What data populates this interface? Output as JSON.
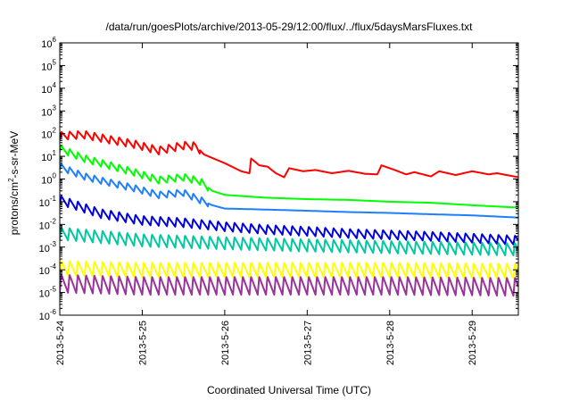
{
  "chart_data": {
    "type": "line",
    "title": "/data/run/goesPlots/archive/2013-05-29/12:00/flux/../flux/5daysMarsFluxes.txt",
    "xlabel": "Coordinated Universal Time (UTC)",
    "ylabel_main": "protons/cm",
    "ylabel_sup": "2",
    "ylabel_tail": "-s-sr-MeV",
    "yscale": "log",
    "ylim_exp": [
      -6,
      6
    ],
    "y_tick_exponents": [
      -6,
      -5,
      -4,
      -3,
      -2,
      -1,
      0,
      1,
      2,
      3,
      4,
      5,
      6
    ],
    "y_tick_base": "10",
    "x_start_day": 24.0,
    "x_end_day": 29.56,
    "x_ticks": [
      {
        "day": 24,
        "label": "2013-5-24"
      },
      {
        "day": 25,
        "label": "2013-5-25"
      },
      {
        "day": 26,
        "label": "2013-5-26"
      },
      {
        "day": 27,
        "label": "2013-5-27"
      },
      {
        "day": 28,
        "label": "2013-5-28"
      },
      {
        "day": 29,
        "label": "2013-5-29"
      }
    ],
    "grid": false,
    "legend": "none",
    "series": [
      {
        "color": "#ff0000",
        "sawtooth_period_days": 0.1,
        "sawtooth_amp_decades": 0.35,
        "sawtooth_until_day": 25.7,
        "points": [
          [
            24.0,
            80
          ],
          [
            24.3,
            90
          ],
          [
            24.6,
            55
          ],
          [
            24.9,
            35
          ],
          [
            25.2,
            18
          ],
          [
            25.5,
            30
          ],
          [
            25.65,
            28
          ],
          [
            25.75,
            12
          ],
          [
            26.0,
            5
          ],
          [
            26.2,
            2.2
          ],
          [
            26.3,
            1.8
          ],
          [
            26.32,
            8
          ],
          [
            26.42,
            4
          ],
          [
            26.52,
            3.5
          ],
          [
            26.62,
            1.8
          ],
          [
            26.72,
            1.2
          ],
          [
            26.78,
            3
          ],
          [
            26.95,
            2.2
          ],
          [
            27.1,
            2.5
          ],
          [
            27.3,
            1.8
          ],
          [
            27.5,
            2.3
          ],
          [
            27.7,
            1.7
          ],
          [
            27.85,
            1.6
          ],
          [
            27.9,
            4
          ],
          [
            28.05,
            2.6
          ],
          [
            28.2,
            1.6
          ],
          [
            28.3,
            2
          ],
          [
            28.5,
            1.3
          ],
          [
            28.6,
            2.2
          ],
          [
            28.8,
            1.5
          ],
          [
            29.0,
            2.2
          ],
          [
            29.2,
            1.6
          ],
          [
            29.3,
            1.8
          ],
          [
            29.56,
            1.2
          ]
        ]
      },
      {
        "color": "#00ff00",
        "sawtooth_period_days": 0.1,
        "sawtooth_amp_decades": 0.32,
        "sawtooth_until_day": 25.8,
        "points": [
          [
            24.0,
            22
          ],
          [
            24.3,
            8
          ],
          [
            24.6,
            4
          ],
          [
            24.9,
            2
          ],
          [
            25.2,
            0.9
          ],
          [
            25.5,
            1.2
          ],
          [
            25.7,
            0.8
          ],
          [
            25.85,
            0.3
          ],
          [
            26.0,
            0.2
          ],
          [
            26.5,
            0.15
          ],
          [
            27.0,
            0.13
          ],
          [
            27.5,
            0.12
          ],
          [
            28.0,
            0.1
          ],
          [
            28.5,
            0.09
          ],
          [
            29.0,
            0.07
          ],
          [
            29.56,
            0.055
          ]
        ]
      },
      {
        "color": "#1e7fff",
        "sawtooth_period_days": 0.1,
        "sawtooth_amp_decades": 0.3,
        "sawtooth_until_day": 25.8,
        "points": [
          [
            24.0,
            3.5
          ],
          [
            24.3,
            1.3
          ],
          [
            24.6,
            0.7
          ],
          [
            24.9,
            0.4
          ],
          [
            25.2,
            0.2
          ],
          [
            25.5,
            0.25
          ],
          [
            25.7,
            0.12
          ],
          [
            25.85,
            0.07
          ],
          [
            26.0,
            0.05
          ],
          [
            26.5,
            0.045
          ],
          [
            27.0,
            0.04
          ],
          [
            27.5,
            0.035
          ],
          [
            28.0,
            0.032
          ],
          [
            28.5,
            0.028
          ],
          [
            29.0,
            0.025
          ],
          [
            29.56,
            0.02
          ]
        ]
      },
      {
        "color": "#0000dd",
        "sawtooth_period_days": 0.1,
        "sawtooth_amp_decades": 0.4,
        "sawtooth_until_day": 29.56,
        "points": [
          [
            24.0,
            0.12
          ],
          [
            24.5,
            0.03
          ],
          [
            25.0,
            0.015
          ],
          [
            25.5,
            0.012
          ],
          [
            26.0,
            0.008
          ],
          [
            26.5,
            0.006
          ],
          [
            27.0,
            0.005
          ],
          [
            27.5,
            0.004
          ],
          [
            28.0,
            0.0035
          ],
          [
            28.5,
            0.003
          ],
          [
            29.0,
            0.0025
          ],
          [
            29.56,
            0.002
          ]
        ]
      },
      {
        "color": "#00c8a0",
        "sawtooth_period_days": 0.1,
        "sawtooth_amp_decades": 0.55,
        "sawtooth_until_day": 29.56,
        "points": [
          [
            24.0,
            0.004
          ],
          [
            25.0,
            0.002
          ],
          [
            26.0,
            0.0015
          ],
          [
            27.0,
            0.0012
          ],
          [
            28.0,
            0.001
          ],
          [
            29.56,
            0.0008
          ]
        ]
      },
      {
        "color": "#ffff00",
        "sawtooth_period_days": 0.1,
        "sawtooth_amp_decades": 0.65,
        "sawtooth_until_day": 29.56,
        "points": [
          [
            24.0,
            0.00012
          ],
          [
            25.0,
            0.0001
          ],
          [
            26.0,
            0.0001
          ],
          [
            27.0,
            0.0001
          ],
          [
            28.0,
            0.0001
          ],
          [
            29.56,
            9e-05
          ]
        ]
      },
      {
        "color": "#993399",
        "sawtooth_period_days": 0.1,
        "sawtooth_amp_decades": 0.8,
        "sawtooth_until_day": 29.56,
        "points": [
          [
            24.0,
            2.5e-05
          ],
          [
            25.0,
            2e-05
          ],
          [
            26.0,
            2e-05
          ],
          [
            27.0,
            2e-05
          ],
          [
            28.0,
            2e-05
          ],
          [
            29.56,
            1.8e-05
          ]
        ]
      }
    ]
  }
}
